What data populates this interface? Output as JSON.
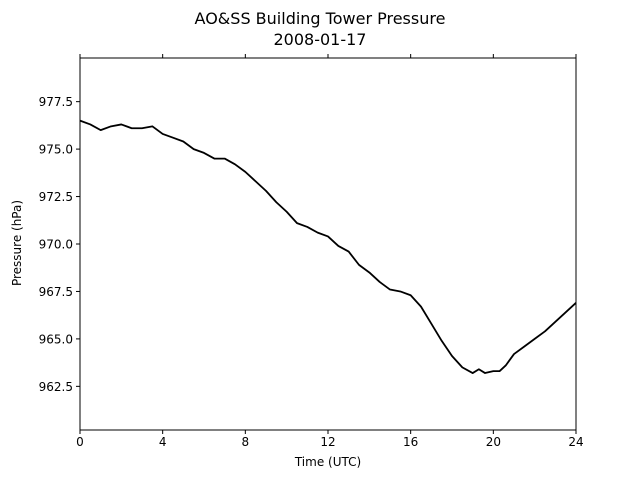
{
  "chart_data": {
    "type": "line",
    "title": "AO&SS Building Tower Pressure",
    "subtitle": "2008-01-17",
    "xlabel": "Time (UTC)",
    "ylabel": "Pressure (hPa)",
    "xlim": [
      0,
      24
    ],
    "ylim": [
      960.2,
      979.8
    ],
    "xticks": [
      0,
      4,
      8,
      12,
      16,
      20,
      24
    ],
    "yticks": [
      962.5,
      965.0,
      967.5,
      970.0,
      972.5,
      975.0,
      977.5
    ],
    "xtick_labels": [
      "0",
      "4",
      "8",
      "12",
      "16",
      "20",
      "24"
    ],
    "ytick_labels": [
      "962.5",
      "965.0",
      "967.5",
      "970.0",
      "972.5",
      "975.0",
      "977.5"
    ],
    "grid": false,
    "line_color": "#000000",
    "series": [
      {
        "x": [
          0,
          0.5,
          1.0,
          1.5,
          2.0,
          2.5,
          3.0,
          3.5,
          4.0,
          4.5,
          5.0,
          5.5,
          6.0,
          6.5,
          7.0,
          7.5,
          8.0,
          8.5,
          9.0,
          9.5,
          10.0,
          10.5,
          11.0,
          11.5,
          12.0,
          12.5,
          13.0,
          13.5,
          14.0,
          14.5,
          15.0,
          15.5,
          16.0,
          16.5,
          17.0,
          17.5,
          18.0,
          18.5,
          19.0,
          19.3,
          19.6,
          20.0,
          20.3,
          20.6,
          21.0,
          21.5,
          22.0,
          22.5,
          23.0,
          23.5,
          24.0
        ],
        "y": [
          976.5,
          976.3,
          976.0,
          976.2,
          976.3,
          976.1,
          976.1,
          976.2,
          975.8,
          975.6,
          975.4,
          975.0,
          974.8,
          974.5,
          974.5,
          974.2,
          973.8,
          973.3,
          972.8,
          972.2,
          971.7,
          971.1,
          970.9,
          970.6,
          970.4,
          969.9,
          969.6,
          968.9,
          968.5,
          968.0,
          967.6,
          967.5,
          967.3,
          966.7,
          965.8,
          964.9,
          964.1,
          963.5,
          963.2,
          963.4,
          963.2,
          963.3,
          963.3,
          963.6,
          964.2,
          964.6,
          965.0,
          965.4,
          965.9,
          966.4,
          966.9
        ]
      }
    ]
  }
}
